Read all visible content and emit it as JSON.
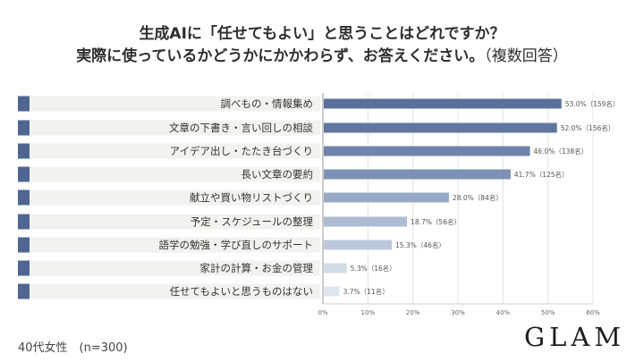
{
  "title": {
    "line1": "生成AIに「任せてもよい」と思うことはどれですか？",
    "line2_main": "実際に使っているかどうかにかかわらず、お答えください。",
    "line2_paren": "（複数回答）"
  },
  "footer": {
    "sample": "40代女性　(n=300)",
    "brand": "GLAM"
  },
  "chart_data": {
    "type": "bar",
    "orientation": "horizontal",
    "categories": [
      "調べもの・情報集め",
      "文章の下書き・言い回しの相談",
      "アイデア出し・たたき台づくり",
      "長い文章の要約",
      "献立や買い物リストづくり",
      "予定・スケジュールの整理",
      "語学の勉強・学び直しのサポート",
      "家計の計算・お金の管理",
      "任せてもよいと思うものはない"
    ],
    "values": [
      53.0,
      52.0,
      46.0,
      41.7,
      28.0,
      18.7,
      15.3,
      5.3,
      3.7
    ],
    "data_labels": [
      "53.0%（159名）",
      "52.0%（156名）",
      "46.0%（138名）",
      "41.7%（125名）",
      "28.0%（84名）",
      "18.7%（56名）",
      "15.3%（46名）",
      "5.3%（16名）",
      "3.7%（11名）"
    ],
    "x_ticks": [
      "0%",
      "10%",
      "20%",
      "30%",
      "40%",
      "50%",
      "60%"
    ],
    "xlim": [
      0,
      60
    ],
    "bar_colors": [
      "#58709a",
      "#5f77a0",
      "#6e84aa",
      "#7d91b4",
      "#98a8c6",
      "#adbbd3",
      "#bdc8dc",
      "#d3dbe8",
      "#e0e6ef"
    ],
    "label_box_color": "#f2f2f0",
    "marker_color": "#4e6690",
    "grid": true
  }
}
